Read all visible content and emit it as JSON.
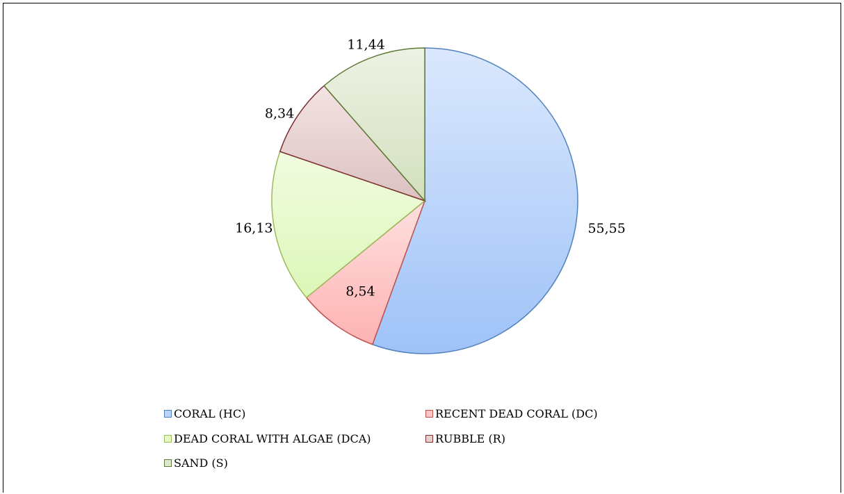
{
  "chart_data": {
    "type": "pie",
    "title": "",
    "slices": [
      {
        "label": "CORAL (HC)",
        "value": 55.55,
        "value_label": "55,55",
        "fill_top": "#dbe8fd",
        "fill_bottom": "#9fc2f7",
        "stroke": "#4f81bd",
        "swatch": "#bcd4fb"
      },
      {
        "label": "RECENT DEAD CORAL (DC)",
        "value": 8.54,
        "value_label": "8,54",
        "fill_top": "#ffe0e0",
        "fill_bottom": "#fdb2b2",
        "stroke": "#c0504d",
        "swatch": "#fcc6c6"
      },
      {
        "label": "DEAD CORAL WITH ALGAE (DCA)",
        "value": 16.13,
        "value_label": "16,13",
        "fill_top": "#f2fce0",
        "fill_bottom": "#dcf6b8",
        "stroke": "#9bbb59",
        "swatch": "#e6f8c8"
      },
      {
        "label": "RUBBLE (R)",
        "value": 8.34,
        "value_label": "8,34",
        "fill_top": "#f3e3e3",
        "fill_bottom": "#dcc1c1",
        "stroke": "#7b2f2f",
        "swatch": "#e6cfcf"
      },
      {
        "label": "SAND (S)",
        "value": 11.44,
        "value_label": "11,44",
        "fill_top": "#edf2e4",
        "fill_bottom": "#d3dfbe",
        "stroke": "#5e7a35",
        "swatch": "#dde6cf"
      }
    ],
    "start_angle": "top",
    "direction": "clockwise",
    "legend_position": "bottom"
  }
}
